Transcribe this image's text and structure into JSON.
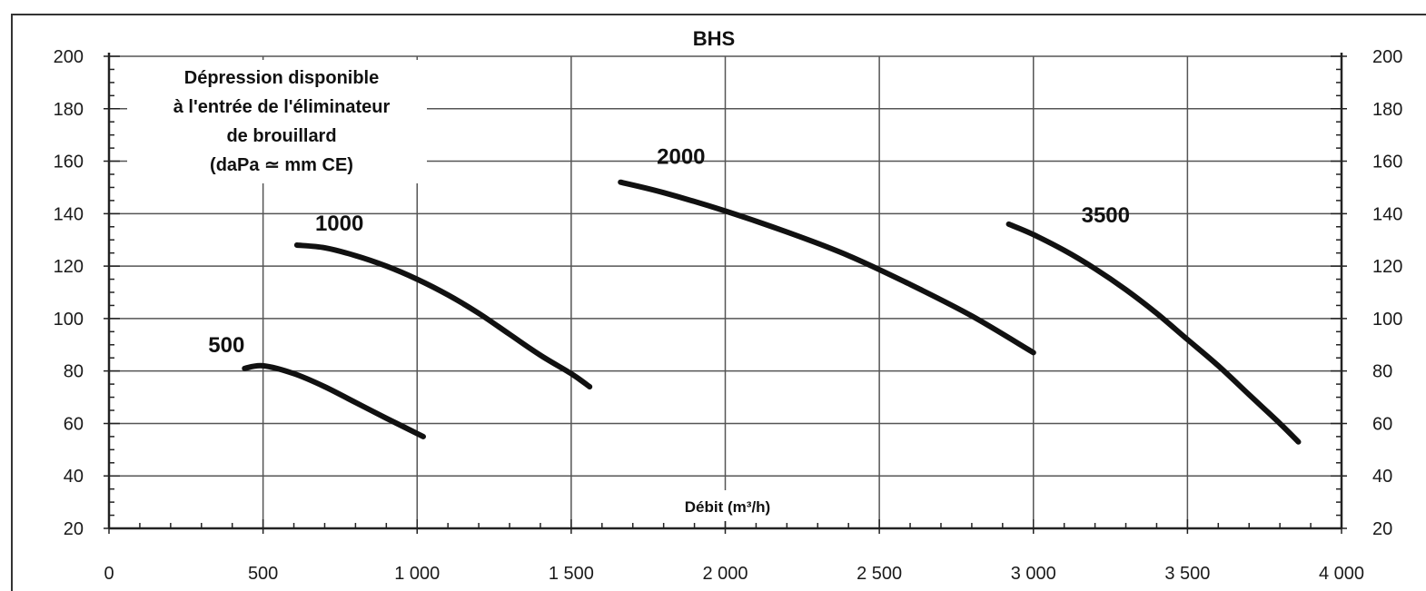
{
  "chart_data": {
    "type": "line",
    "title": "BHS",
    "ylabel": [
      "Dépression disponible",
      "à l'entrée de l'éliminateur",
      "de brouillard",
      "(daPa ≃ mm CE)"
    ],
    "xlabel": "Débit (m³/h)",
    "xlim": [
      0,
      4000
    ],
    "ylim": [
      20,
      200
    ],
    "x_ticks": [
      0,
      500,
      1000,
      1500,
      2000,
      2500,
      3000,
      3500,
      4000
    ],
    "x_tick_labels": [
      "0",
      "500",
      "1 000",
      "1 500",
      "2 000",
      "2 500",
      "3 000",
      "3 500",
      "4 000"
    ],
    "y_ticks": [
      20,
      40,
      60,
      80,
      100,
      120,
      140,
      160,
      180,
      200
    ],
    "y_tick_labels": [
      "20",
      "40",
      "60",
      "80",
      "100",
      "120",
      "140",
      "160",
      "180",
      "200"
    ],
    "grid": true,
    "series": [
      {
        "name": "500",
        "x": [
          440,
          500,
          600,
          700,
          800,
          900,
          1020
        ],
        "y": [
          81,
          82,
          79,
          74,
          68,
          62,
          55
        ]
      },
      {
        "name": "1000",
        "x": [
          610,
          700,
          800,
          900,
          1000,
          1100,
          1200,
          1300,
          1400,
          1500,
          1560
        ],
        "y": [
          128,
          127,
          124,
          120,
          115,
          109,
          102,
          94,
          86,
          79,
          74
        ]
      },
      {
        "name": "2000",
        "x": [
          1660,
          1800,
          2000,
          2200,
          2400,
          2600,
          2800,
          3000
        ],
        "y": [
          152,
          148,
          141,
          133,
          124,
          113,
          101,
          87
        ]
      },
      {
        "name": "3500",
        "x": [
          2920,
          3000,
          3100,
          3200,
          3300,
          3400,
          3500,
          3600,
          3700,
          3800,
          3860
        ],
        "y": [
          136,
          132,
          126,
          119,
          111,
          102,
          92,
          82,
          71,
          60,
          53
        ]
      }
    ]
  }
}
